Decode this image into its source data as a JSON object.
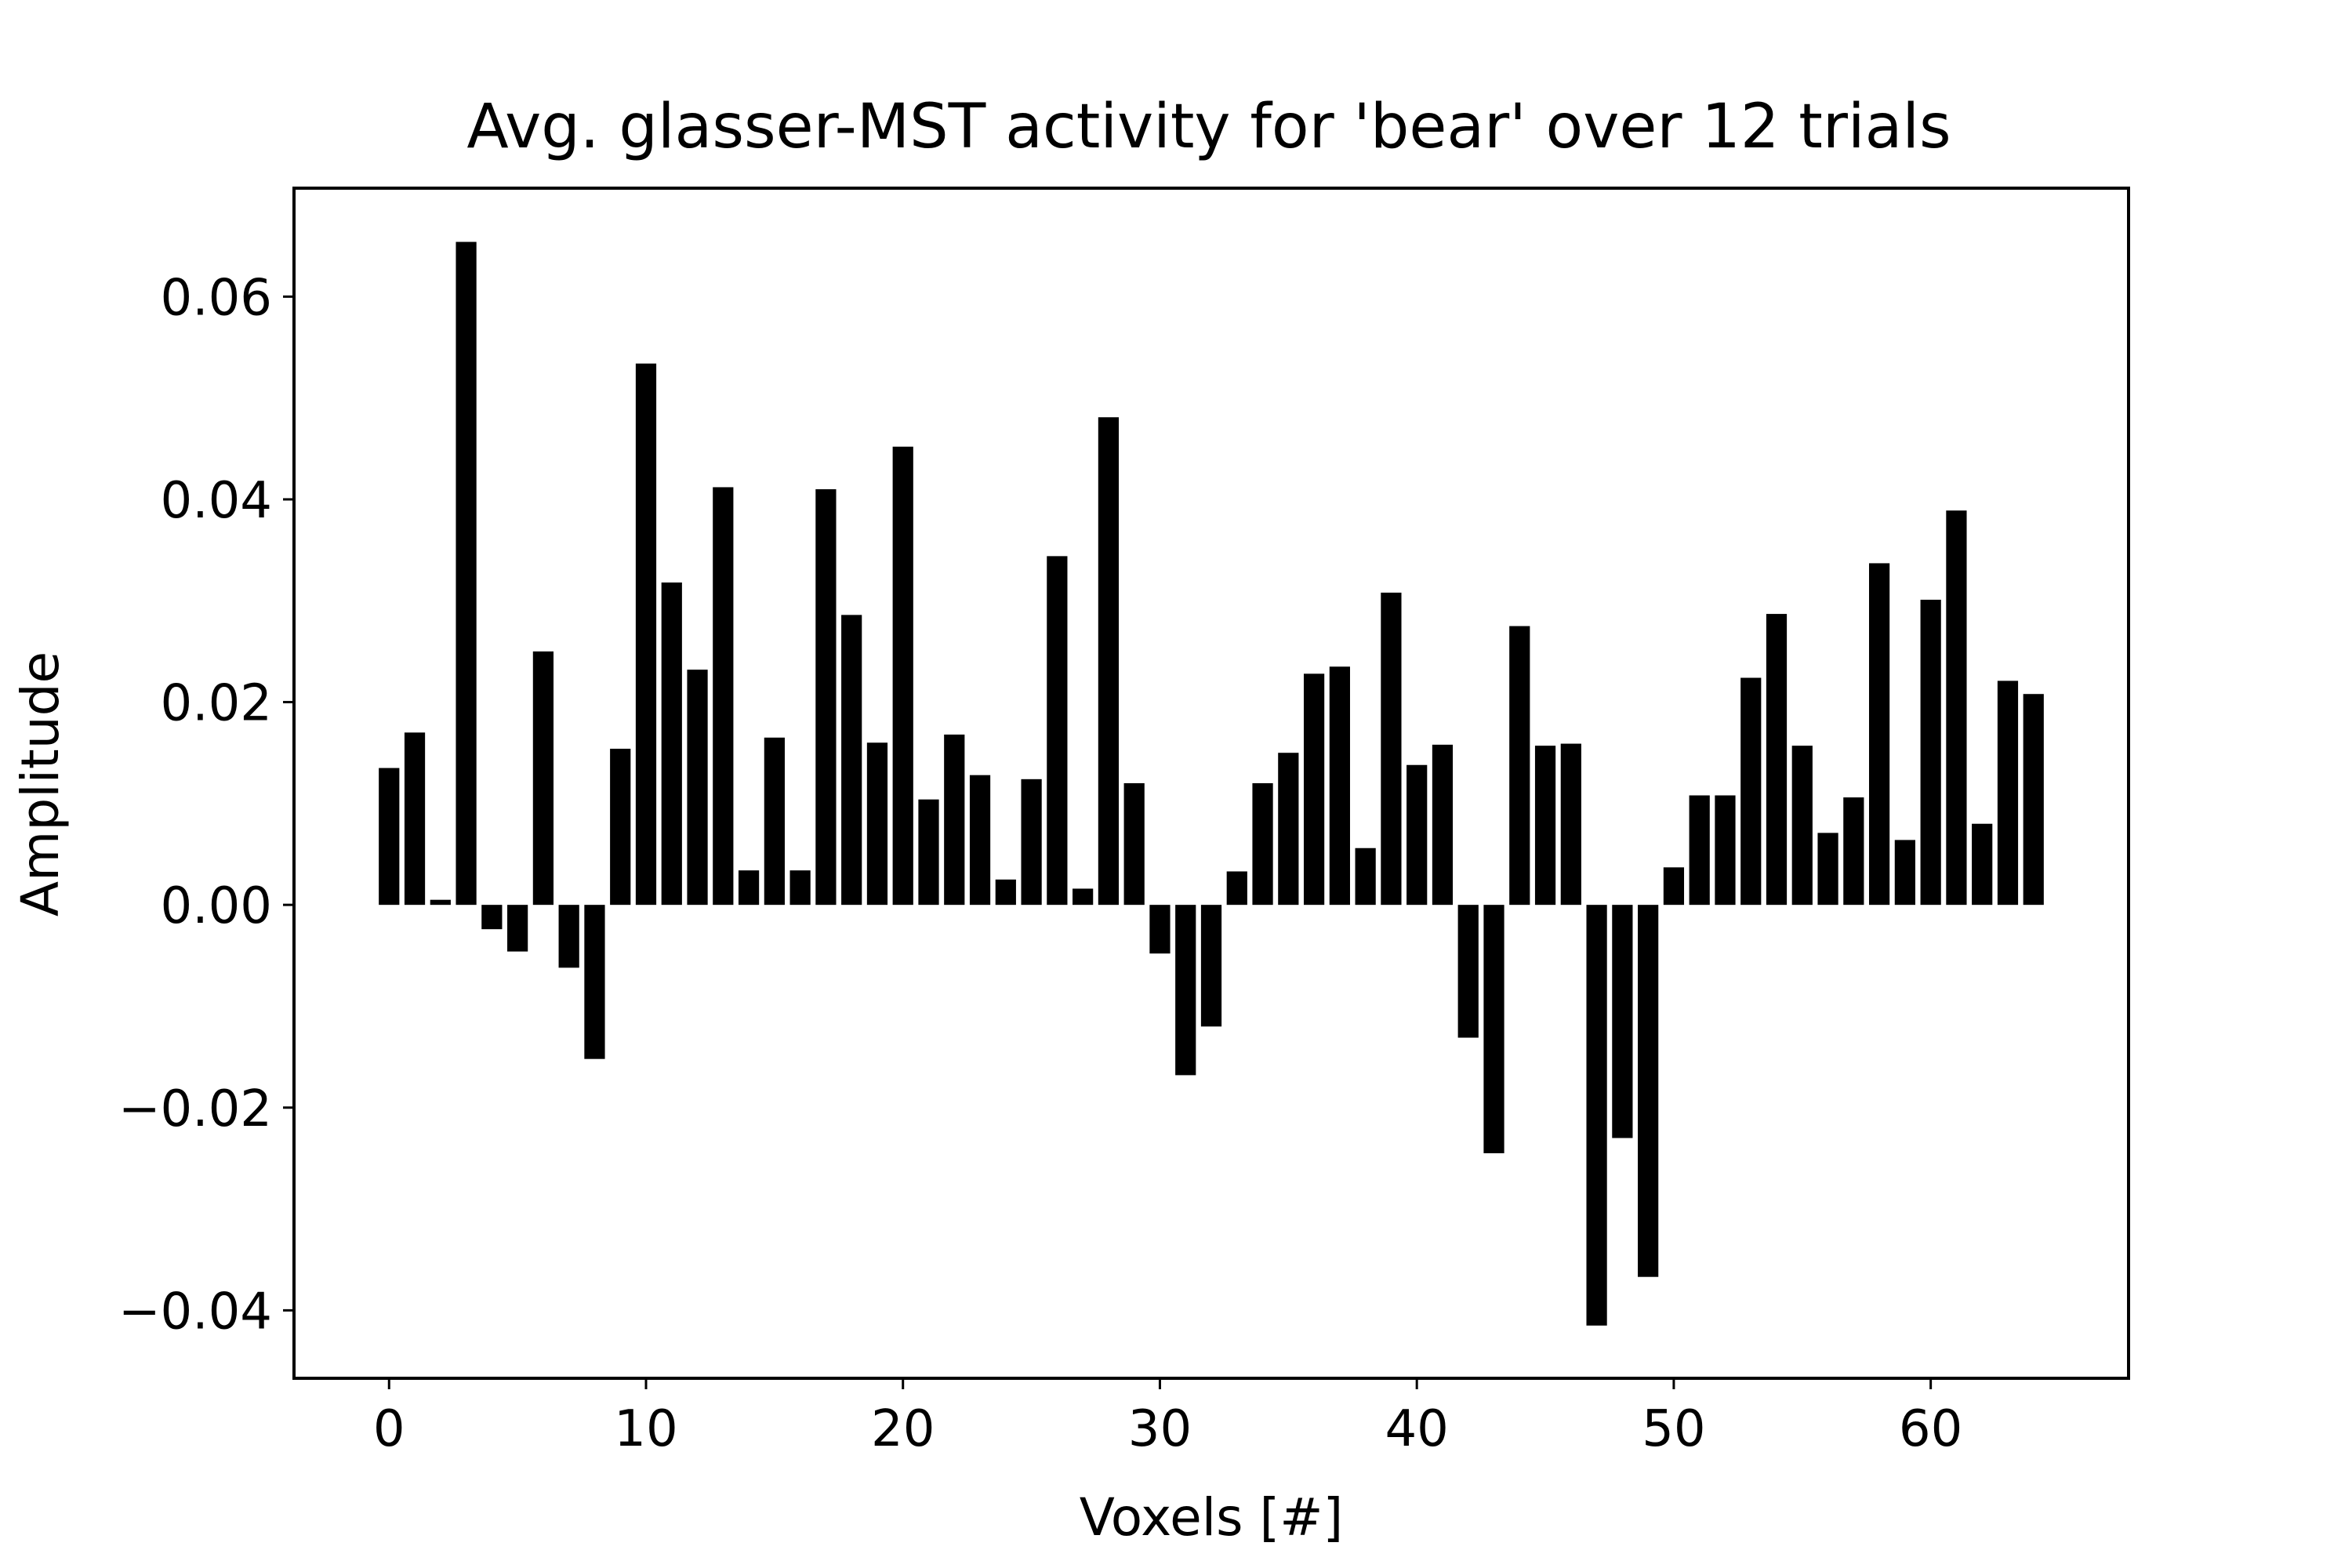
{
  "chart_data": {
    "type": "bar",
    "title": "Avg. glasser-MST activity for 'bear' over 12 trials",
    "xlabel": "Voxels [#]",
    "ylabel": "Amplitude",
    "x": [
      0,
      1,
      2,
      3,
      4,
      5,
      6,
      7,
      8,
      9,
      10,
      11,
      12,
      13,
      14,
      15,
      16,
      17,
      18,
      19,
      20,
      21,
      22,
      23,
      24,
      25,
      26,
      27,
      28,
      29,
      30,
      31,
      32,
      33,
      34,
      35,
      36,
      37,
      38,
      39,
      40,
      41,
      42,
      43,
      44,
      45,
      46,
      47,
      48,
      49,
      50,
      51,
      52,
      53,
      54,
      55,
      56,
      57,
      58,
      59,
      60,
      61,
      62,
      63,
      64
    ],
    "values": [
      0.0135,
      0.017,
      0.0005,
      0.0654,
      -0.0024,
      -0.0046,
      0.025,
      -0.0062,
      -0.0152,
      0.0154,
      0.0534,
      0.0318,
      0.0232,
      0.0412,
      0.0034,
      0.0165,
      0.0034,
      0.041,
      0.0286,
      0.016,
      0.0452,
      0.0104,
      0.0168,
      0.0128,
      0.0025,
      0.0124,
      0.0344,
      0.0016,
      0.0481,
      0.012,
      -0.0048,
      -0.0168,
      -0.012,
      0.0033,
      0.012,
      0.015,
      0.0228,
      0.0235,
      0.0056,
      0.0308,
      0.0138,
      0.0158,
      -0.0131,
      -0.0245,
      0.0275,
      0.0157,
      0.0159,
      -0.0415,
      -0.023,
      -0.0367,
      0.0037,
      0.0108,
      0.0108,
      0.0224,
      0.0287,
      0.0157,
      0.0071,
      0.0106,
      0.0337,
      0.0064,
      0.0301,
      0.0389,
      0.008,
      0.0221,
      0.0208
    ],
    "xlim": [
      -3.7,
      67.7
    ],
    "ylim": [
      -0.0467,
      0.0707
    ],
    "xticks": [
      0,
      10,
      20,
      30,
      40,
      50,
      60
    ],
    "xtick_labels": [
      "0",
      "10",
      "20",
      "30",
      "40",
      "50",
      "60"
    ],
    "yticks": [
      -0.04,
      -0.02,
      0.0,
      0.02,
      0.04,
      0.06
    ],
    "ytick_labels": [
      "−0.04",
      "−0.02",
      "0.00",
      "0.02",
      "0.04",
      "0.06"
    ],
    "bar_color": "#000000",
    "grid": false,
    "legend": "none"
  }
}
